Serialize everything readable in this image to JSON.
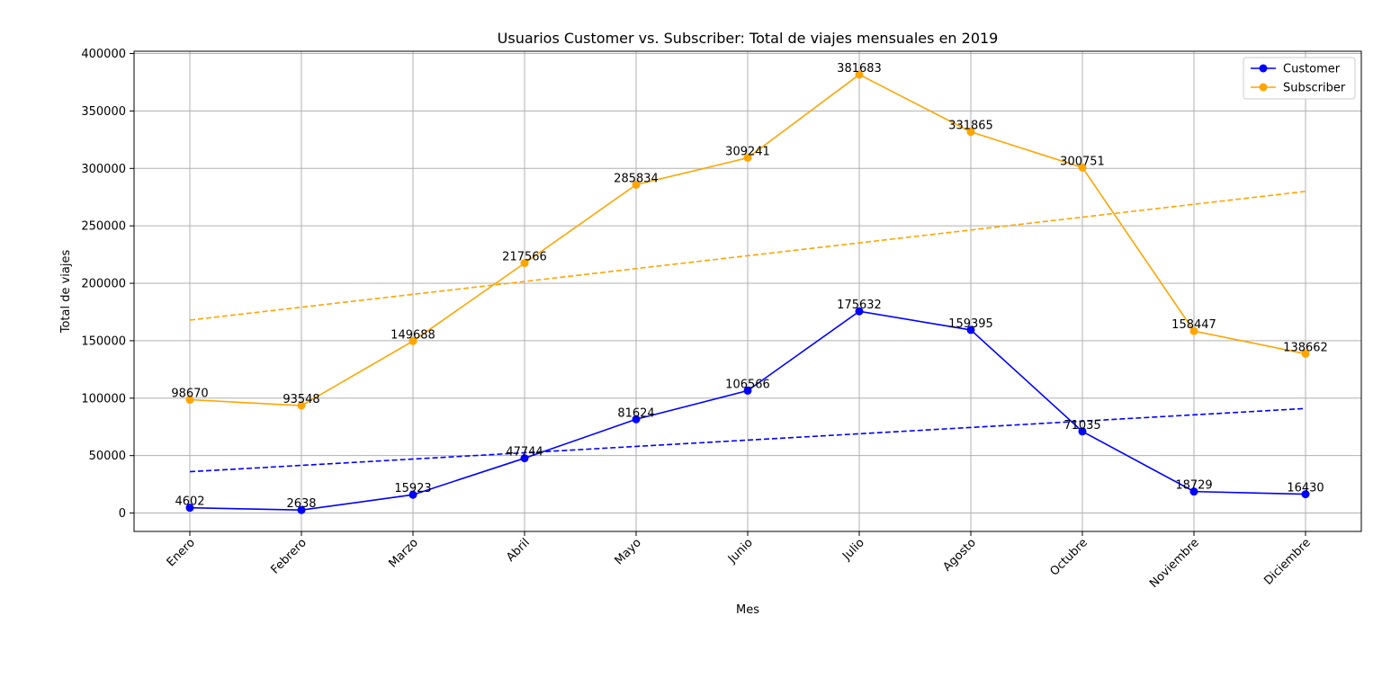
{
  "chart_data": {
    "type": "line",
    "title": "Usuarios Customer vs. Subscriber: Total de viajes mensuales en 2019",
    "xlabel": "Mes",
    "ylabel": "Total de viajes",
    "categories": [
      "Enero",
      "Febrero",
      "Marzo",
      "Abril",
      "Mayo",
      "Junio",
      "Julio",
      "Agosto",
      "Octubre",
      "Noviembre",
      "Diciembre"
    ],
    "ylim": [
      -16000,
      402000
    ],
    "yticks": [
      0,
      50000,
      100000,
      150000,
      200000,
      250000,
      300000,
      350000,
      400000
    ],
    "grid": true,
    "legend_position": "top-right",
    "series": [
      {
        "name": "Customer",
        "color": "#0000ff",
        "values": [
          4602,
          2638,
          15923,
          47744,
          81624,
          106566,
          175632,
          159395,
          71035,
          18729,
          16430
        ],
        "trend": [
          36000,
          91000
        ]
      },
      {
        "name": "Subscriber",
        "color": "#ffa500",
        "values": [
          98670,
          93548,
          149688,
          217566,
          285834,
          309241,
          381683,
          331865,
          300751,
          158447,
          138662
        ],
        "trend": [
          168000,
          280000
        ]
      }
    ]
  }
}
